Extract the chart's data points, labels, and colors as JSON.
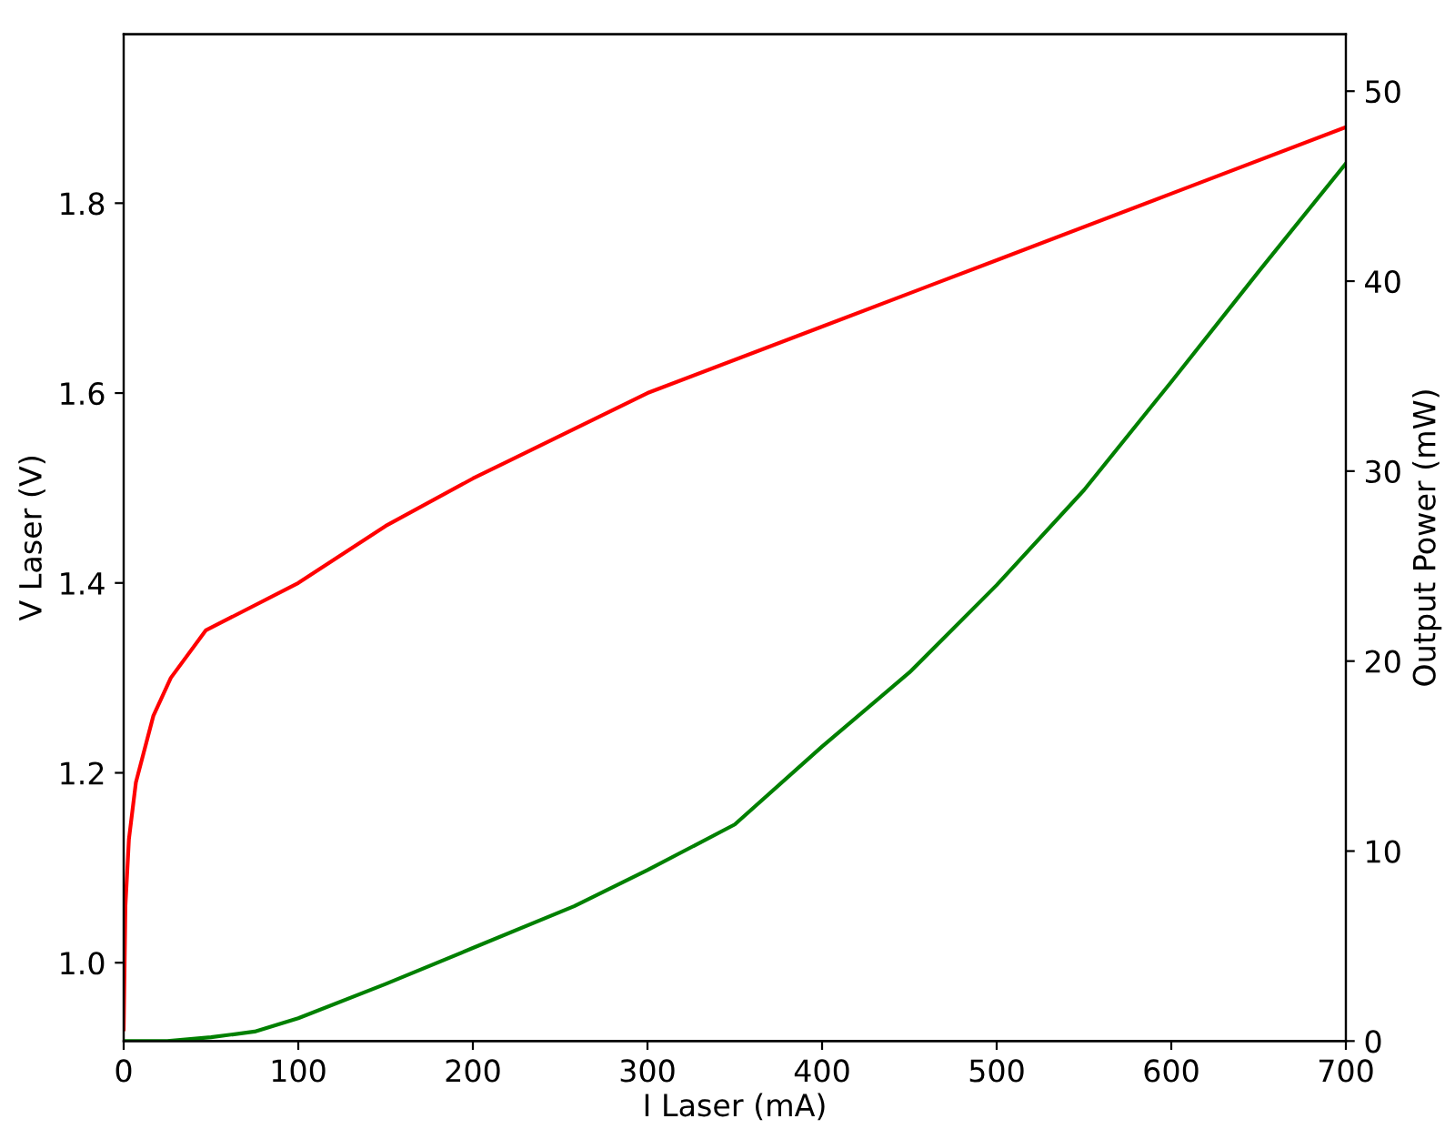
{
  "chart_data": {
    "type": "line",
    "xlabel": "I Laser (mA)",
    "ylabel": "V Laser (V)",
    "y2label": "Output Power (mW)",
    "xlim": [
      0,
      700
    ],
    "xticks": [
      0,
      100,
      200,
      300,
      400,
      500,
      600,
      700
    ],
    "ylim": [
      0.9175,
      1.978
    ],
    "yticks": [
      {
        "value": 1.0,
        "label": "1.0"
      },
      {
        "value": 1.2,
        "label": "1.2"
      },
      {
        "value": 1.4,
        "label": "1.4"
      },
      {
        "value": 1.6,
        "label": "1.6"
      },
      {
        "value": 1.8,
        "label": "1.8"
      }
    ],
    "y2lim": [
      0,
      53
    ],
    "y2ticks": [
      0,
      10,
      20,
      30,
      40,
      50
    ],
    "grid": false,
    "legend": false,
    "line_style": "solid",
    "marker": "none",
    "series": [
      {
        "color": "#ff0000",
        "axis": "y",
        "x": [
          0,
          1,
          3,
          7,
          17,
          27,
          47,
          100,
          150,
          200,
          300,
          400,
          500,
          600,
          700
        ],
        "values": [
          0.93,
          1.06,
          1.13,
          1.19,
          1.26,
          1.3,
          1.35,
          1.4,
          1.46,
          1.51,
          1.6,
          1.67,
          1.74,
          1.81,
          1.88
        ]
      },
      {
        "color": "#008000",
        "axis": "y2",
        "x": [
          0,
          25,
          50,
          75,
          100,
          150,
          200,
          258,
          300,
          350,
          400,
          450,
          500,
          550,
          600,
          650,
          700
        ],
        "values": [
          0,
          0,
          0.2,
          0.5,
          1.2,
          3.0,
          4.9,
          7.1,
          9.0,
          11.4,
          15.5,
          19.4,
          24.0,
          29.0,
          34.7,
          40.5,
          46.2
        ]
      }
    ]
  }
}
